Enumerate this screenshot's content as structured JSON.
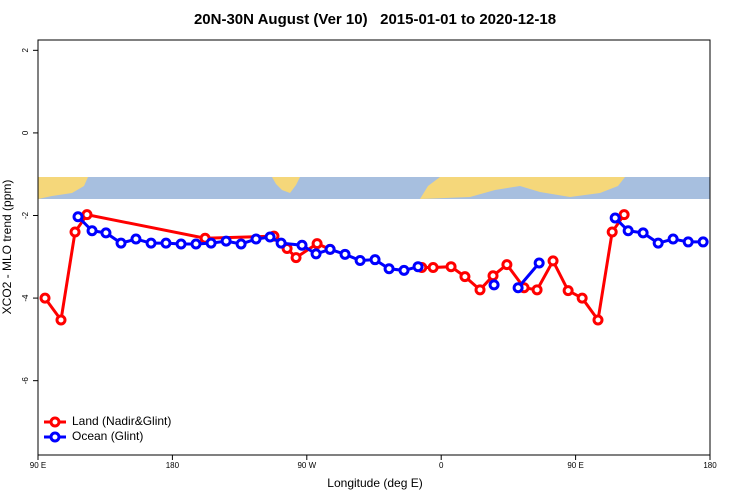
{
  "chart_data": {
    "type": "line",
    "title": "20N-30N August (Ver 10)   2015-01-01 to 2020-12-18",
    "x_label": "Longitude (deg E)",
    "y_label": "XCO2 - MLO trend (ppm)",
    "xlim": [
      90,
      540
    ],
    "xticks": [
      {
        "value": 90,
        "label": "90 E"
      },
      {
        "value": 180,
        "label": "180"
      },
      {
        "value": 270,
        "label": "90 W"
      },
      {
        "value": 360,
        "label": "0"
      },
      {
        "value": 450,
        "label": "90 E"
      },
      {
        "value": 540,
        "label": "180"
      }
    ],
    "ylim": [
      -7.8,
      2.25
    ],
    "yticks": [
      2,
      0,
      -2,
      -4,
      -6
    ],
    "legend": "bottom-left",
    "series": [
      {
        "name": "Land (Nadir&Glint)",
        "color": "#ff0000",
        "x": [
          94.7,
          105.4,
          114.8,
          122.8,
          201.9,
          248,
          256.8,
          262.8,
          276.9,
          285.6,
          null,
          347,
          354.6,
          366.6,
          375.9,
          386,
          394.7,
          404,
          415.5,
          424.2,
          434.9,
          445,
          454.4,
          465,
          474.5,
          482.5
        ],
        "values": [
          -4.0,
          -4.53,
          -2.4,
          -1.98,
          -2.55,
          -2.5,
          -2.8,
          -3.02,
          -2.68,
          -2.82,
          null,
          -3.26,
          -3.26,
          -3.24,
          -3.48,
          -3.8,
          -3.46,
          -3.19,
          -3.75,
          -3.8,
          -3.1,
          -3.82,
          -4.0,
          -4.53,
          -2.4,
          -1.98
        ]
      },
      {
        "name": "Ocean (Glint)",
        "color": "#0000ff",
        "x": [
          116.8,
          126.2,
          135.5,
          145.6,
          155.6,
          165.7,
          175.7,
          185.8,
          195.8,
          205.9,
          216,
          226,
          236,
          245.4,
          252.8,
          266.8,
          276.2,
          285.6,
          295.6,
          305.7,
          315.7,
          325.1,
          335.1,
          344.5,
          null,
          395.4,
          null,
          411.5,
          425.6,
          null,
          476.5,
          485.2,
          495.2,
          505.3,
          515.3,
          525.4,
          535.4
        ],
        "values": [
          -2.03,
          -2.37,
          -2.42,
          -2.67,
          -2.57,
          -2.67,
          -2.67,
          -2.69,
          -2.69,
          -2.67,
          -2.62,
          -2.69,
          -2.57,
          -2.52,
          -2.67,
          -2.72,
          -2.93,
          -2.82,
          -2.94,
          -3.09,
          -3.07,
          -3.29,
          -3.33,
          -3.24,
          null,
          -3.68,
          null,
          -3.75,
          -3.15,
          null,
          -2.06,
          -2.37,
          -2.42,
          -2.67,
          -2.57,
          -2.64,
          -2.64
        ]
      }
    ]
  }
}
